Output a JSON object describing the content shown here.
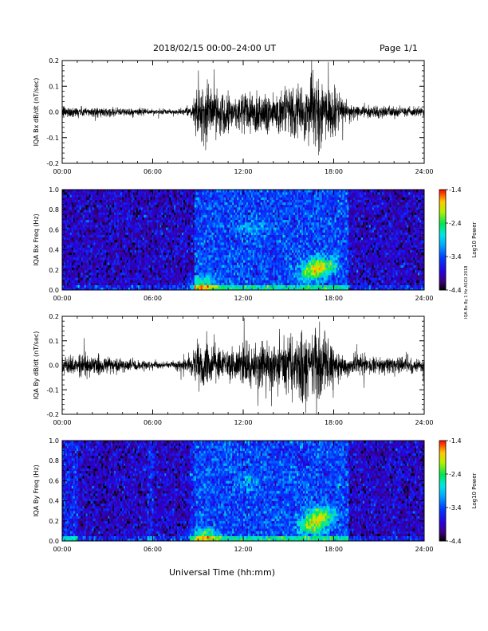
{
  "header": {
    "title": "2018/02/15  00:00–24:00 UT",
    "page": "Page 1/1"
  },
  "side_note": "IQA Bx By 1 Hz ASCII 2018",
  "xlabel": "Universal Time (hh:mm)",
  "chart_data": [
    {
      "type": "line",
      "ylabel": "IQA Bx dB/dt (nT/sec)",
      "xlim": [
        0,
        24
      ],
      "ylim": [
        -0.2,
        0.2
      ],
      "x_ticks": [
        "00:00",
        "06:00",
        "12:00",
        "18:00",
        "24:00"
      ],
      "y_ticks": [
        "-0.2",
        "-0.1",
        "0.0",
        "0.1",
        "0.2"
      ],
      "x_hours": [
        0,
        1,
        2,
        3,
        4,
        5,
        6,
        7,
        8,
        8.5,
        9,
        9.5,
        10,
        10.5,
        11,
        11.5,
        12,
        12.5,
        13,
        13.5,
        14,
        14.5,
        15,
        15.5,
        16,
        16.5,
        17,
        17.5,
        18,
        18.5,
        19,
        20,
        21,
        22,
        23,
        24
      ],
      "amplitude": [
        0.03,
        0.025,
        0.025,
        0.02,
        0.02,
        0.018,
        0.015,
        0.012,
        0.015,
        0.02,
        0.12,
        0.16,
        0.11,
        0.12,
        0.09,
        0.08,
        0.12,
        0.1,
        0.12,
        0.11,
        0.1,
        0.1,
        0.12,
        0.13,
        0.12,
        0.15,
        0.2,
        0.14,
        0.12,
        0.06,
        0.04,
        0.03,
        0.03,
        0.025,
        0.025,
        0.02
      ],
      "line_color": "#000000"
    },
    {
      "type": "heatmap",
      "ylabel": "IQA Bx Freq (Hz)",
      "xlim": [
        0,
        24
      ],
      "ylim": [
        0,
        1
      ],
      "x_ticks": [
        "00:00",
        "06:00",
        "12:00",
        "18:00",
        "24:00"
      ],
      "y_ticks": [
        "0.0",
        "0.2",
        "0.4",
        "0.6",
        "0.8",
        "1.0"
      ],
      "colorbar": {
        "label": "Log10 Power",
        "ticks": [
          "-1.4",
          "-2.4",
          "-3.4",
          "-4.4"
        ],
        "range": [
          -4.4,
          -1.4
        ]
      },
      "enhanced_intervals_hours": [
        [
          8.8,
          19.0
        ]
      ],
      "bright_spots": [
        {
          "t": 9.3,
          "f": 0.05,
          "power": -2.6
        },
        {
          "t": 16.5,
          "f": 0.18,
          "power": -2.5
        },
        {
          "t": 17.3,
          "f": 0.25,
          "power": -2.4
        },
        {
          "t": 12.5,
          "f": 0.6,
          "power": -3.2
        }
      ]
    },
    {
      "type": "line",
      "ylabel": "IQA By dB/dt (nT/sec)",
      "xlim": [
        0,
        24
      ],
      "ylim": [
        -0.2,
        0.2
      ],
      "x_ticks": [
        "00:00",
        "06:00",
        "12:00",
        "18:00",
        "24:00"
      ],
      "y_ticks": [
        "-0.2",
        "-0.1",
        "0.0",
        "0.1",
        "0.2"
      ],
      "x_hours": [
        0,
        1,
        2,
        3,
        4,
        5,
        6,
        7,
        8,
        8.5,
        9,
        9.5,
        10,
        10.5,
        11,
        11.5,
        12,
        12.5,
        13,
        13.5,
        14,
        14.5,
        15,
        15.5,
        16,
        16.5,
        17,
        17.5,
        18,
        18.5,
        19,
        20,
        21,
        22,
        23,
        24
      ],
      "amplitude": [
        0.05,
        0.06,
        0.05,
        0.04,
        0.035,
        0.03,
        0.02,
        0.015,
        0.03,
        0.06,
        0.12,
        0.12,
        0.1,
        0.09,
        0.08,
        0.09,
        0.1,
        0.1,
        0.11,
        0.12,
        0.12,
        0.12,
        0.14,
        0.16,
        0.18,
        0.2,
        0.2,
        0.14,
        0.1,
        0.06,
        0.05,
        0.05,
        0.05,
        0.045,
        0.04,
        0.04
      ],
      "line_color": "#000000"
    },
    {
      "type": "heatmap",
      "ylabel": "IQA By Freq (Hz)",
      "xlim": [
        0,
        24
      ],
      "ylim": [
        0,
        1
      ],
      "x_ticks": [
        "00:00",
        "06:00",
        "12:00",
        "18:00",
        "24:00"
      ],
      "y_ticks": [
        "0.0",
        "0.2",
        "0.4",
        "0.6",
        "0.8",
        "1.0"
      ],
      "colorbar": {
        "label": "Log10 Power",
        "ticks": [
          "-1.4",
          "-2.4",
          "-3.4",
          "-4.4"
        ],
        "range": [
          -4.4,
          -1.4
        ]
      },
      "enhanced_intervals_hours": [
        [
          0.0,
          1.0
        ],
        [
          5.6,
          6.1
        ],
        [
          8.5,
          8.8
        ],
        [
          8.8,
          19.0
        ]
      ],
      "bright_spots": [
        {
          "t": 9.5,
          "f": 0.05,
          "power": -2.6
        },
        {
          "t": 16.5,
          "f": 0.15,
          "power": -2.4
        },
        {
          "t": 17.2,
          "f": 0.25,
          "power": -2.4
        },
        {
          "t": 12.3,
          "f": 0.6,
          "power": -3.2
        }
      ]
    }
  ]
}
